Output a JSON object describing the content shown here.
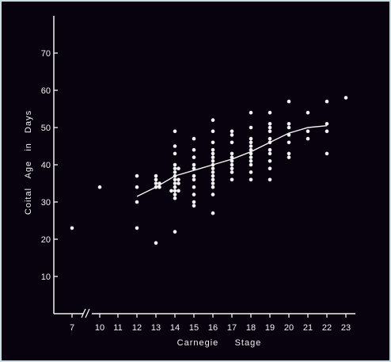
{
  "chart_data": {
    "type": "scatter",
    "title": "",
    "xlabel": "Carnegie     Stage",
    "ylabel": "Coital   Age   in   Days",
    "x_ticks": [
      "7",
      "10",
      "11",
      "12",
      "13",
      "14",
      "15",
      "16",
      "17",
      "18",
      "19",
      "20",
      "21",
      "22",
      "23"
    ],
    "y_ticks": [
      "10",
      "20",
      "30",
      "40",
      "50",
      "60",
      "70"
    ],
    "ylim": [
      0,
      75
    ],
    "x_axis_break": "between 7 and 10",
    "grid": false,
    "legend": "none",
    "colors": {
      "background": "#07020d",
      "foreground": "#f2f2f2",
      "border": "#c9dde2"
    },
    "points": [
      [
        7,
        23
      ],
      [
        10,
        34
      ],
      [
        12,
        23
      ],
      [
        12,
        30
      ],
      [
        12,
        34
      ],
      [
        12,
        37
      ],
      [
        13,
        19
      ],
      [
        13,
        34
      ],
      [
        13,
        34
      ],
      [
        13,
        35
      ],
      [
        13,
        35
      ],
      [
        13,
        36
      ],
      [
        13,
        37
      ],
      [
        14,
        22
      ],
      [
        14,
        31
      ],
      [
        14,
        32
      ],
      [
        14,
        33
      ],
      [
        14,
        33
      ],
      [
        14,
        33
      ],
      [
        14,
        34
      ],
      [
        14,
        35
      ],
      [
        14,
        35
      ],
      [
        14,
        36
      ],
      [
        14,
        36
      ],
      [
        14,
        37
      ],
      [
        14,
        38
      ],
      [
        14,
        39
      ],
      [
        14,
        39
      ],
      [
        14,
        40
      ],
      [
        14,
        43
      ],
      [
        14,
        45
      ],
      [
        14,
        49
      ],
      [
        15,
        29
      ],
      [
        15,
        30
      ],
      [
        15,
        32
      ],
      [
        15,
        34
      ],
      [
        15,
        36
      ],
      [
        15,
        37
      ],
      [
        15,
        39
      ],
      [
        15,
        40
      ],
      [
        15,
        42
      ],
      [
        15,
        44
      ],
      [
        15,
        47
      ],
      [
        16,
        27
      ],
      [
        16,
        32
      ],
      [
        16,
        34
      ],
      [
        16,
        35
      ],
      [
        16,
        36
      ],
      [
        16,
        37
      ],
      [
        16,
        38
      ],
      [
        16,
        39
      ],
      [
        16,
        40
      ],
      [
        16,
        41
      ],
      [
        16,
        42
      ],
      [
        16,
        43
      ],
      [
        16,
        44
      ],
      [
        16,
        46
      ],
      [
        16,
        49
      ],
      [
        16,
        52
      ],
      [
        17,
        36
      ],
      [
        17,
        38
      ],
      [
        17,
        39
      ],
      [
        17,
        40
      ],
      [
        17,
        41
      ],
      [
        17,
        42
      ],
      [
        17,
        43
      ],
      [
        17,
        46
      ],
      [
        17,
        48
      ],
      [
        17,
        49
      ],
      [
        18,
        36
      ],
      [
        18,
        38
      ],
      [
        18,
        40
      ],
      [
        18,
        41
      ],
      [
        18,
        42
      ],
      [
        18,
        43
      ],
      [
        18,
        44
      ],
      [
        18,
        45
      ],
      [
        18,
        46
      ],
      [
        18,
        47
      ],
      [
        18,
        50
      ],
      [
        18,
        54
      ],
      [
        19,
        36
      ],
      [
        19,
        39
      ],
      [
        19,
        41
      ],
      [
        19,
        43
      ],
      [
        19,
        44
      ],
      [
        19,
        46
      ],
      [
        19,
        47
      ],
      [
        19,
        49
      ],
      [
        19,
        50
      ],
      [
        19,
        51
      ],
      [
        19,
        54
      ],
      [
        20,
        42
      ],
      [
        20,
        43
      ],
      [
        20,
        46
      ],
      [
        20,
        48
      ],
      [
        20,
        50
      ],
      [
        20,
        51
      ],
      [
        20,
        57
      ],
      [
        21,
        47
      ],
      [
        21,
        49
      ],
      [
        21,
        54
      ],
      [
        22,
        43
      ],
      [
        22,
        49
      ],
      [
        22,
        51
      ],
      [
        22,
        57
      ],
      [
        23,
        58
      ]
    ],
    "trend_line": [
      [
        12,
        31.5
      ],
      [
        13,
        34
      ],
      [
        14,
        37
      ],
      [
        15,
        38.5
      ],
      [
        16,
        40
      ],
      [
        17,
        41.5
      ],
      [
        18,
        43.5
      ],
      [
        19,
        46
      ],
      [
        20,
        48.5
      ],
      [
        21,
        50
      ],
      [
        22,
        50.5
      ]
    ]
  }
}
